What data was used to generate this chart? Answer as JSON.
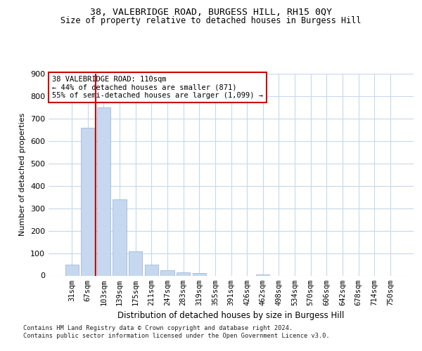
{
  "title": "38, VALEBRIDGE ROAD, BURGESS HILL, RH15 0QY",
  "subtitle": "Size of property relative to detached houses in Burgess Hill",
  "xlabel": "Distribution of detached houses by size in Burgess Hill",
  "ylabel": "Number of detached properties",
  "bar_labels": [
    "31sqm",
    "67sqm",
    "103sqm",
    "139sqm",
    "175sqm",
    "211sqm",
    "247sqm",
    "283sqm",
    "319sqm",
    "355sqm",
    "391sqm",
    "426sqm",
    "462sqm",
    "498sqm",
    "534sqm",
    "570sqm",
    "606sqm",
    "642sqm",
    "678sqm",
    "714sqm",
    "750sqm"
  ],
  "bar_values": [
    50,
    660,
    750,
    340,
    107,
    49,
    22,
    14,
    10,
    0,
    0,
    0,
    5,
    0,
    0,
    0,
    0,
    0,
    0,
    0,
    0
  ],
  "bar_color": "#c5d8f0",
  "bar_edge_color": "#a0b8d8",
  "ylim": [
    0,
    900
  ],
  "yticks": [
    0,
    100,
    200,
    300,
    400,
    500,
    600,
    700,
    800,
    900
  ],
  "vline_color": "#cc0000",
  "vline_bin_index": 2,
  "annotation_text": "38 VALEBRIDGE ROAD: 110sqm\n← 44% of detached houses are smaller (871)\n55% of semi-detached houses are larger (1,099) →",
  "annotation_box_color": "#ffffff",
  "annotation_box_edge": "#cc0000",
  "footer_line1": "Contains HM Land Registry data © Crown copyright and database right 2024.",
  "footer_line2": "Contains public sector information licensed under the Open Government Licence v3.0.",
  "background_color": "#ffffff",
  "grid_color": "#c8d8e8",
  "title_fontsize": 9.5,
  "subtitle_fontsize": 8.5,
  "ylabel_fontsize": 8,
  "xlabel_fontsize": 8.5,
  "tick_fontsize": 7.5,
  "annot_fontsize": 7.5,
  "footer_fontsize": 6.2
}
